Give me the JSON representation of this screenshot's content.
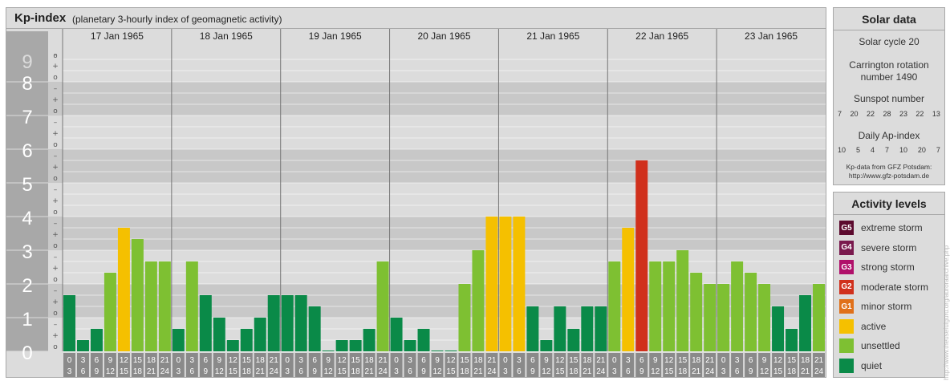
{
  "header": {
    "title": "Kp-index",
    "subtitle": "(planetary 3-hourly index of geomagnetic activity)"
  },
  "chart_data": {
    "type": "bar",
    "y_labels": [
      "0",
      "1",
      "2",
      "3",
      "4",
      "5",
      "6",
      "7",
      "8",
      "9"
    ],
    "sub_tick_labels": [
      "o",
      "+",
      "–"
    ],
    "ylim": [
      0,
      9
    ],
    "days": [
      "17 Jan 1965",
      "18 Jan 1965",
      "19 Jan 1965",
      "20 Jan 1965",
      "21 Jan 1965",
      "22 Jan 1965",
      "23 Jan 1965"
    ],
    "interval_labels": [
      [
        "0",
        "3"
      ],
      [
        "3",
        "6"
      ],
      [
        "6",
        "9"
      ],
      [
        "9",
        "12"
      ],
      [
        "12",
        "15"
      ],
      [
        "15",
        "18"
      ],
      [
        "18",
        "21"
      ],
      [
        "21",
        "24"
      ]
    ],
    "values": [
      [
        1.667,
        0.333,
        0.667,
        2.333,
        3.667,
        3.333,
        2.667,
        2.667
      ],
      [
        0.667,
        2.667,
        1.667,
        1.0,
        0.333,
        0.667,
        1.0,
        1.667
      ],
      [
        1.667,
        1.667,
        1.333,
        0.0,
        0.333,
        0.333,
        0.667,
        2.667
      ],
      [
        1.0,
        0.333,
        0.667,
        0.0,
        0.0,
        2.0,
        3.0,
        4.0
      ],
      [
        4.0,
        4.0,
        1.333,
        0.333,
        1.333,
        0.667,
        1.333,
        1.333
      ],
      [
        2.667,
        3.667,
        5.667,
        2.667,
        2.667,
        3.0,
        2.333,
        2.0
      ],
      [
        2.0,
        2.667,
        2.333,
        2.0,
        1.333,
        0.667,
        1.667,
        2.0
      ]
    ]
  },
  "solar": {
    "title": "Solar data",
    "cycle": "Solar cycle 20",
    "carrington_1": "Carrington rotation",
    "carrington_2": "number 1490",
    "sunspot_label": "Sunspot number",
    "sunspot_values": [
      "7",
      "20",
      "22",
      "28",
      "23",
      "22",
      "13"
    ],
    "ap_label": "Daily Ap-index",
    "ap_values": [
      "10",
      "5",
      "4",
      "7",
      "10",
      "20",
      "7"
    ],
    "source_1": "Kp-data from GFZ Potsdam:",
    "source_2": "http://www.gfz-potsdam.de"
  },
  "activity": {
    "title": "Activity levels",
    "items": [
      {
        "code": "G5",
        "label": "extreme storm",
        "color": "#5c0a2e"
      },
      {
        "code": "G4",
        "label": "severe storm",
        "color": "#7a1a4e"
      },
      {
        "code": "G3",
        "label": "strong storm",
        "color": "#b0106a"
      },
      {
        "code": "G2",
        "label": "moderate storm",
        "color": "#d0301c"
      },
      {
        "code": "G1",
        "label": "minor storm",
        "color": "#e0701a"
      },
      {
        "code": "",
        "label": "active",
        "color": "#f5c000"
      },
      {
        "code": "",
        "label": "unsettled",
        "color": "#7ec032"
      },
      {
        "code": "",
        "label": "quiet",
        "color": "#0a8a48"
      }
    ]
  },
  "watermark": "http://www.theusefulguru.org/auroraarchive.php"
}
